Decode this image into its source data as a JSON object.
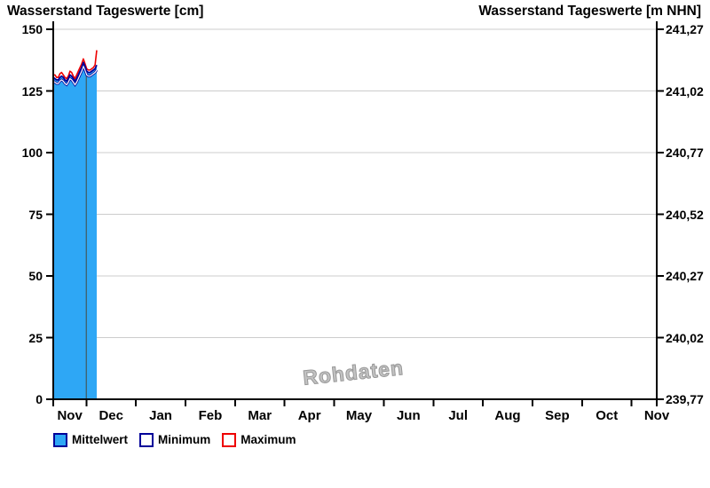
{
  "titles": {
    "left": "Wasserstand Tageswerte [cm]",
    "right": "Wasserstand Tageswerte [m NHN]"
  },
  "watermark": "Rohdaten",
  "legend": {
    "items": [
      {
        "label": "Mittelwert",
        "fill": "#2ea7f5",
        "border": "#000099"
      },
      {
        "label": "Minimum",
        "fill": "#ffffff",
        "border": "#000099"
      },
      {
        "label": "Maximum",
        "fill": "#ffffff",
        "border": "#ee0000"
      }
    ]
  },
  "chart_data": {
    "type": "area",
    "title": "Wasserstand Tageswerte",
    "unit_left": "cm",
    "unit_right": "m NHN",
    "y_axis_left": {
      "label": "Wasserstand Tageswerte [cm]",
      "ticks": [
        0,
        25,
        50,
        75,
        100,
        125,
        150
      ],
      "lim": [
        0,
        150
      ]
    },
    "y_axis_right": {
      "label": "Wasserstand Tageswerte [m NHN]",
      "tick_labels": [
        "239,77",
        "240,02",
        "240,27",
        "240,52",
        "240,77",
        "241,02",
        "241,27"
      ]
    },
    "x_axis": {
      "month_labels": [
        "Nov",
        "Dec",
        "Jan",
        "Feb",
        "Mar",
        "Apr",
        "May",
        "Jun",
        "Jul",
        "Aug",
        "Sep",
        "Oct",
        "Nov"
      ],
      "vertical_gridlines": false
    },
    "grid": {
      "horizontal": true,
      "color": "#cccccc"
    },
    "series": [
      {
        "name": "Mittelwert",
        "style": "area",
        "fill": "#2ea7f5",
        "line_color": "#000099",
        "values": [
          130.5,
          130,
          129.5,
          129.5,
          130.5,
          131,
          130.5,
          129.5,
          129,
          130,
          131.5,
          131,
          130,
          129,
          130,
          131.5,
          133,
          134.5,
          136.5,
          135,
          133,
          132.5,
          132.5,
          133,
          133.5,
          134,
          135.5
        ]
      },
      {
        "name": "Minimum",
        "style": "line",
        "fill": "#ffffff",
        "line_color": "#000099",
        "values": [
          129,
          128.5,
          128,
          128,
          129,
          129.5,
          129,
          128,
          127.5,
          128.5,
          130,
          129.5,
          128.5,
          127.5,
          128.5,
          130,
          131.5,
          133,
          135,
          133.5,
          131.5,
          131,
          131,
          131.5,
          132,
          132.5,
          133.5
        ]
      },
      {
        "name": "Maximum",
        "style": "line",
        "fill": "#ffffff",
        "line_color": "#ee0000",
        "values": [
          131.5,
          131.5,
          130.5,
          130.5,
          132,
          132.5,
          131.5,
          130.5,
          130,
          131,
          133,
          132.5,
          131,
          130,
          131.5,
          133,
          134.5,
          136,
          138,
          136,
          134,
          133.5,
          133.5,
          134,
          134.5,
          135.5,
          141.5
        ]
      }
    ]
  }
}
